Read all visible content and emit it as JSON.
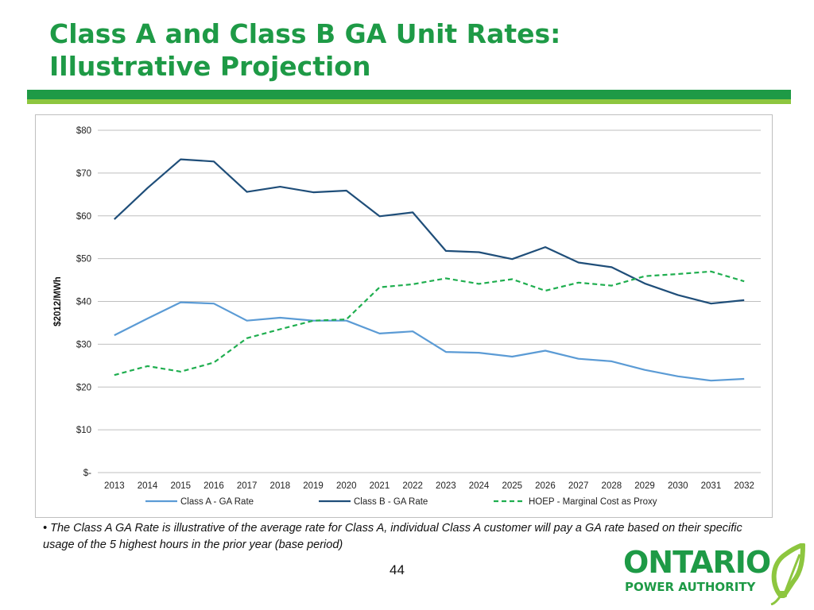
{
  "slide": {
    "title_line1": "Class A and Class B GA Unit Rates:",
    "title_line2": "Illustrative Projection",
    "note": "• The Class A GA Rate is illustrative of the average rate for Class A, individual Class A customer will pay a GA rate based on their specific usage of the 5 highest hours in the prior year (base period)",
    "page_number": "44",
    "logo_word": "ONTARIO",
    "logo_sub": "POWER AUTHORITY",
    "colors": {
      "brand_green": "#1e9a46",
      "brand_light_green": "#8dc63f"
    }
  },
  "chart_data": {
    "type": "line",
    "title": "",
    "xlabel": "",
    "ylabel": "$2012/MWh",
    "categories": [
      "2013",
      "2014",
      "2015",
      "2016",
      "2017",
      "2018",
      "2019",
      "2020",
      "2021",
      "2022",
      "2023",
      "2024",
      "2025",
      "2026",
      "2027",
      "2028",
      "2029",
      "2030",
      "2031",
      "2032"
    ],
    "ylim": [
      0,
      80
    ],
    "yticks": [
      0,
      10,
      20,
      30,
      40,
      50,
      60,
      70,
      80
    ],
    "ytick_labels": [
      "$-",
      "$10",
      "$20",
      "$30",
      "$40",
      "$50",
      "$60",
      "$70",
      "$80"
    ],
    "grid": true,
    "legend_position": "bottom",
    "series": [
      {
        "name": "Class A - GA Rate",
        "color": "#5b9bd5",
        "dash": "solid",
        "values": [
          32.1,
          36.0,
          39.8,
          39.5,
          35.5,
          36.2,
          35.5,
          35.5,
          32.5,
          33.0,
          28.2,
          28.0,
          27.1,
          28.5,
          26.6,
          26.0,
          24.0,
          22.5,
          21.5,
          21.9
        ]
      },
      {
        "name": "Class B - GA Rate",
        "color": "#1f4e79",
        "dash": "solid",
        "values": [
          59.2,
          66.5,
          73.2,
          72.7,
          65.6,
          66.8,
          65.5,
          65.9,
          59.9,
          60.8,
          51.8,
          51.5,
          49.9,
          52.7,
          49.1,
          48.0,
          44.2,
          41.5,
          39.5,
          40.3
        ]
      },
      {
        "name": "HOEP - Marginal Cost as Proxy",
        "color": "#1fae4f",
        "dash": "dashed",
        "values": [
          22.8,
          24.9,
          23.6,
          25.7,
          31.4,
          33.5,
          35.5,
          35.8,
          43.3,
          44.0,
          45.4,
          44.1,
          45.2,
          42.5,
          44.4,
          43.7,
          45.9,
          46.4,
          47.0,
          44.7
        ]
      }
    ]
  }
}
